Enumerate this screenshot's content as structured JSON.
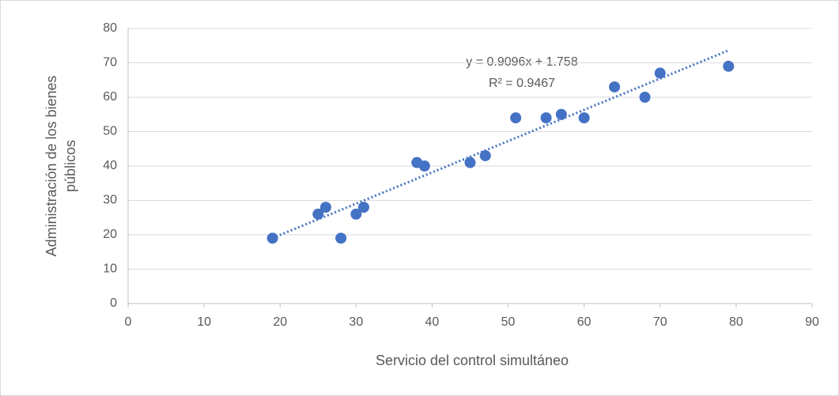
{
  "chart_data": {
    "type": "scatter",
    "x_label": "Servicio del control simultáneo",
    "y_label": [
      "Administración de los bienes",
      "públicos"
    ],
    "series": [
      {
        "color": "#4472c4",
        "x": [
          19,
          25,
          26,
          28,
          30,
          31,
          38,
          39,
          45,
          47,
          51,
          55,
          57,
          60,
          64,
          68,
          70,
          79
        ],
        "values": [
          19,
          26,
          28,
          19,
          26,
          28,
          41,
          40,
          41,
          43,
          54,
          54,
          55,
          54,
          63,
          60,
          67,
          69
        ]
      }
    ],
    "trendline": {
      "slope": 0.9096,
      "intercept": 1.758,
      "equation": "y = 0.9096x + 1.758",
      "r_squared": 0.9467,
      "r_squared_label": "R² = 0.9467"
    },
    "xlim": [
      0,
      90
    ],
    "xticks": [
      0,
      10,
      20,
      30,
      40,
      50,
      60,
      70,
      80,
      90
    ],
    "ylim": [
      0,
      80
    ],
    "yticks": [
      0,
      10,
      20,
      30,
      40,
      50,
      60,
      70,
      80
    ],
    "grid": true
  }
}
